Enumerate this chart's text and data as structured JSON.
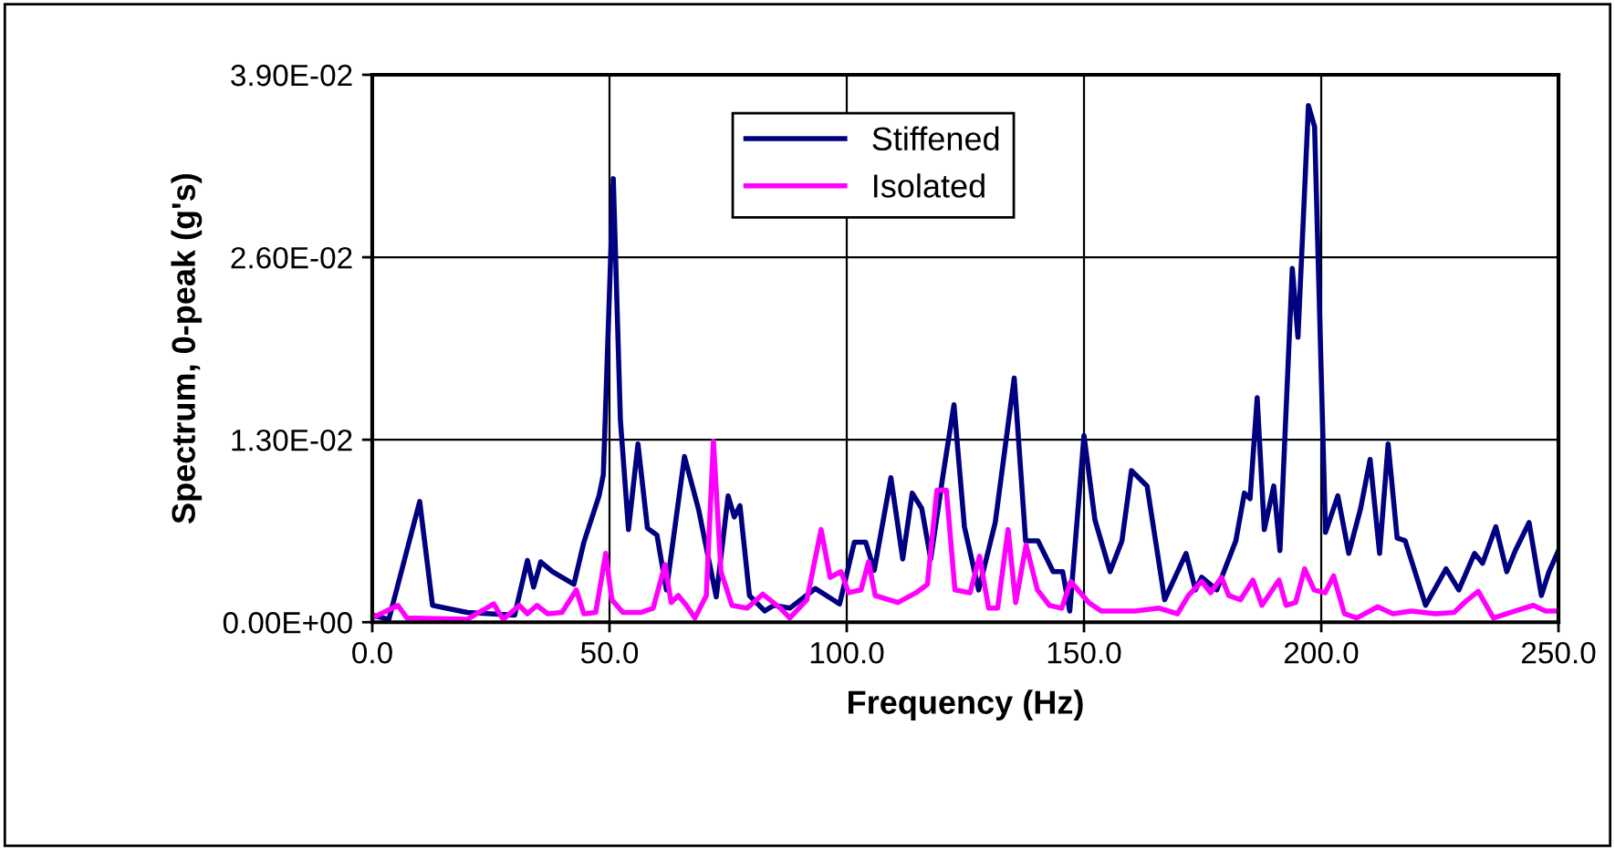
{
  "chart_data": {
    "type": "line",
    "xlabel": "Frequency (Hz)",
    "ylabel": "Spectrum, 0-peak (g's)",
    "xlim": [
      0,
      250
    ],
    "ylim": [
      0,
      0.039
    ],
    "xticks": [
      {
        "value": 0,
        "label": "0.0"
      },
      {
        "value": 50,
        "label": "50.0"
      },
      {
        "value": 100,
        "label": "100.0"
      },
      {
        "value": 150,
        "label": "150.0"
      },
      {
        "value": 200,
        "label": "200.0"
      },
      {
        "value": 250,
        "label": "250.0"
      }
    ],
    "yticks": [
      {
        "value": 0,
        "label": "0.00E+00"
      },
      {
        "value": 0.013,
        "label": "1.30E-02"
      },
      {
        "value": 0.026,
        "label": "2.60E-02"
      },
      {
        "value": 0.039,
        "label": "3.90E-02"
      }
    ],
    "grid": true,
    "legend": "top",
    "marker": "none",
    "line_style": "solid",
    "series": [
      {
        "name": "Stiffened",
        "color": "#000080",
        "x": [
          0,
          3.5,
          10,
          12.7,
          20,
          30,
          32.7,
          34,
          35.5,
          38,
          42.5,
          44.6,
          47.8,
          48.7,
          50.8,
          52.3,
          54,
          56,
          58,
          60,
          62,
          65.8,
          68.8,
          72.5,
          75,
          76.3,
          77.5,
          79.5,
          82.7,
          84.6,
          88,
          93.4,
          98.5,
          101.6,
          104,
          105.8,
          109.3,
          111.8,
          113.8,
          115.8,
          117.7,
          120.3,
          122.6,
          124.8,
          127.8,
          131.3,
          135.3,
          137.7,
          140.3,
          143.5,
          145.5,
          147,
          150,
          152.3,
          155.5,
          158,
          160,
          163.3,
          167,
          171.5,
          173.5,
          174.8,
          178,
          182,
          183.8,
          185,
          186.5,
          188,
          190,
          191.3,
          193.9,
          195.1,
          197.3,
          198.6,
          200.9,
          203.5,
          205.8,
          208.3,
          210.3,
          212.3,
          214.1,
          216,
          217.7,
          222,
          226.3,
          229,
          232.3,
          234,
          236.8,
          239.1,
          240.9,
          243.8,
          246.4,
          248,
          250
        ],
        "values": [
          0.0005,
          0.0002,
          0.0086,
          0.0012,
          0.0007,
          0.0005,
          0.0044,
          0.0025,
          0.0043,
          0.0036,
          0.0027,
          0.0057,
          0.009,
          0.0105,
          0.0316,
          0.0144,
          0.0066,
          0.0127,
          0.0067,
          0.0062,
          0.0023,
          0.0118,
          0.008,
          0.0018,
          0.009,
          0.0075,
          0.0083,
          0.0019,
          0.0008,
          0.0012,
          0.001,
          0.0024,
          0.0013,
          0.0057,
          0.0057,
          0.0037,
          0.0103,
          0.0045,
          0.0092,
          0.0081,
          0.0045,
          0.0105,
          0.0155,
          0.0068,
          0.0023,
          0.0071,
          0.0174,
          0.0058,
          0.0058,
          0.0036,
          0.0036,
          0.0008,
          0.0133,
          0.0073,
          0.0036,
          0.0058,
          0.0108,
          0.0097,
          0.0016,
          0.0049,
          0.0023,
          0.0032,
          0.0023,
          0.0058,
          0.0092,
          0.0088,
          0.016,
          0.0066,
          0.0097,
          0.0051,
          0.0252,
          0.0203,
          0.0368,
          0.0353,
          0.0064,
          0.009,
          0.0049,
          0.0081,
          0.0116,
          0.0049,
          0.0127,
          0.006,
          0.0058,
          0.0012,
          0.0038,
          0.0023,
          0.0049,
          0.0042,
          0.0068,
          0.0036,
          0.0051,
          0.0071,
          0.0019,
          0.0036,
          0.0051
        ]
      },
      {
        "name": "Isolated",
        "color": "#ff00ff",
        "x": [
          0,
          5.4,
          7.3,
          20,
          25.6,
          27.6,
          31,
          32.7,
          34.7,
          37,
          40,
          43,
          44.6,
          47.1,
          49.2,
          50.5,
          52.8,
          56.7,
          59.2,
          61.7,
          63,
          64.5,
          66.2,
          68,
          70.4,
          71.9,
          73.5,
          75.8,
          79,
          82.3,
          86,
          88,
          91.6,
          94.6,
          96.5,
          98.8,
          100.4,
          103,
          104.6,
          106,
          110.8,
          114.6,
          117,
          119,
          121,
          122.8,
          126,
          128,
          129.9,
          131.8,
          134,
          135.6,
          137.8,
          140.2,
          142.7,
          145.3,
          147.2,
          151,
          153.6,
          160.7,
          165.8,
          169.7,
          172,
          174.8,
          176.7,
          179,
          180.5,
          183,
          185.6,
          187.5,
          191.1,
          192.6,
          194.6,
          196.5,
          198.5,
          200.8,
          202.6,
          204.9,
          207.5,
          211.9,
          215.1,
          219,
          224.1,
          228,
          230.5,
          233.1,
          236.3,
          240.9,
          244.7,
          247.3,
          250
        ],
        "values": [
          0.0003,
          0.0012,
          0.0003,
          0.0002,
          0.0013,
          0.0002,
          0.0012,
          0.0006,
          0.0012,
          0.0006,
          0.0007,
          0.0023,
          0.0006,
          0.0007,
          0.0049,
          0.0016,
          0.0007,
          0.0007,
          0.001,
          0.0041,
          0.0014,
          0.0019,
          0.0012,
          0.0003,
          0.0019,
          0.0129,
          0.0036,
          0.0012,
          0.001,
          0.002,
          0.001,
          0.0003,
          0.0016,
          0.0066,
          0.0032,
          0.0036,
          0.0021,
          0.0023,
          0.0043,
          0.0019,
          0.0014,
          0.0021,
          0.0027,
          0.0094,
          0.0094,
          0.0023,
          0.0021,
          0.0047,
          0.001,
          0.001,
          0.0066,
          0.0014,
          0.0055,
          0.0023,
          0.0012,
          0.001,
          0.0029,
          0.0014,
          0.0008,
          0.0008,
          0.001,
          0.0006,
          0.0019,
          0.0029,
          0.0021,
          0.0032,
          0.0019,
          0.0016,
          0.003,
          0.0012,
          0.003,
          0.0012,
          0.0014,
          0.0038,
          0.0023,
          0.0021,
          0.0033,
          0.0006,
          0.0003,
          0.0011,
          0.0006,
          0.0008,
          0.0006,
          0.0007,
          0.0015,
          0.0022,
          0.0003,
          0.0008,
          0.0012,
          0.0008,
          0.0008
        ]
      }
    ]
  }
}
